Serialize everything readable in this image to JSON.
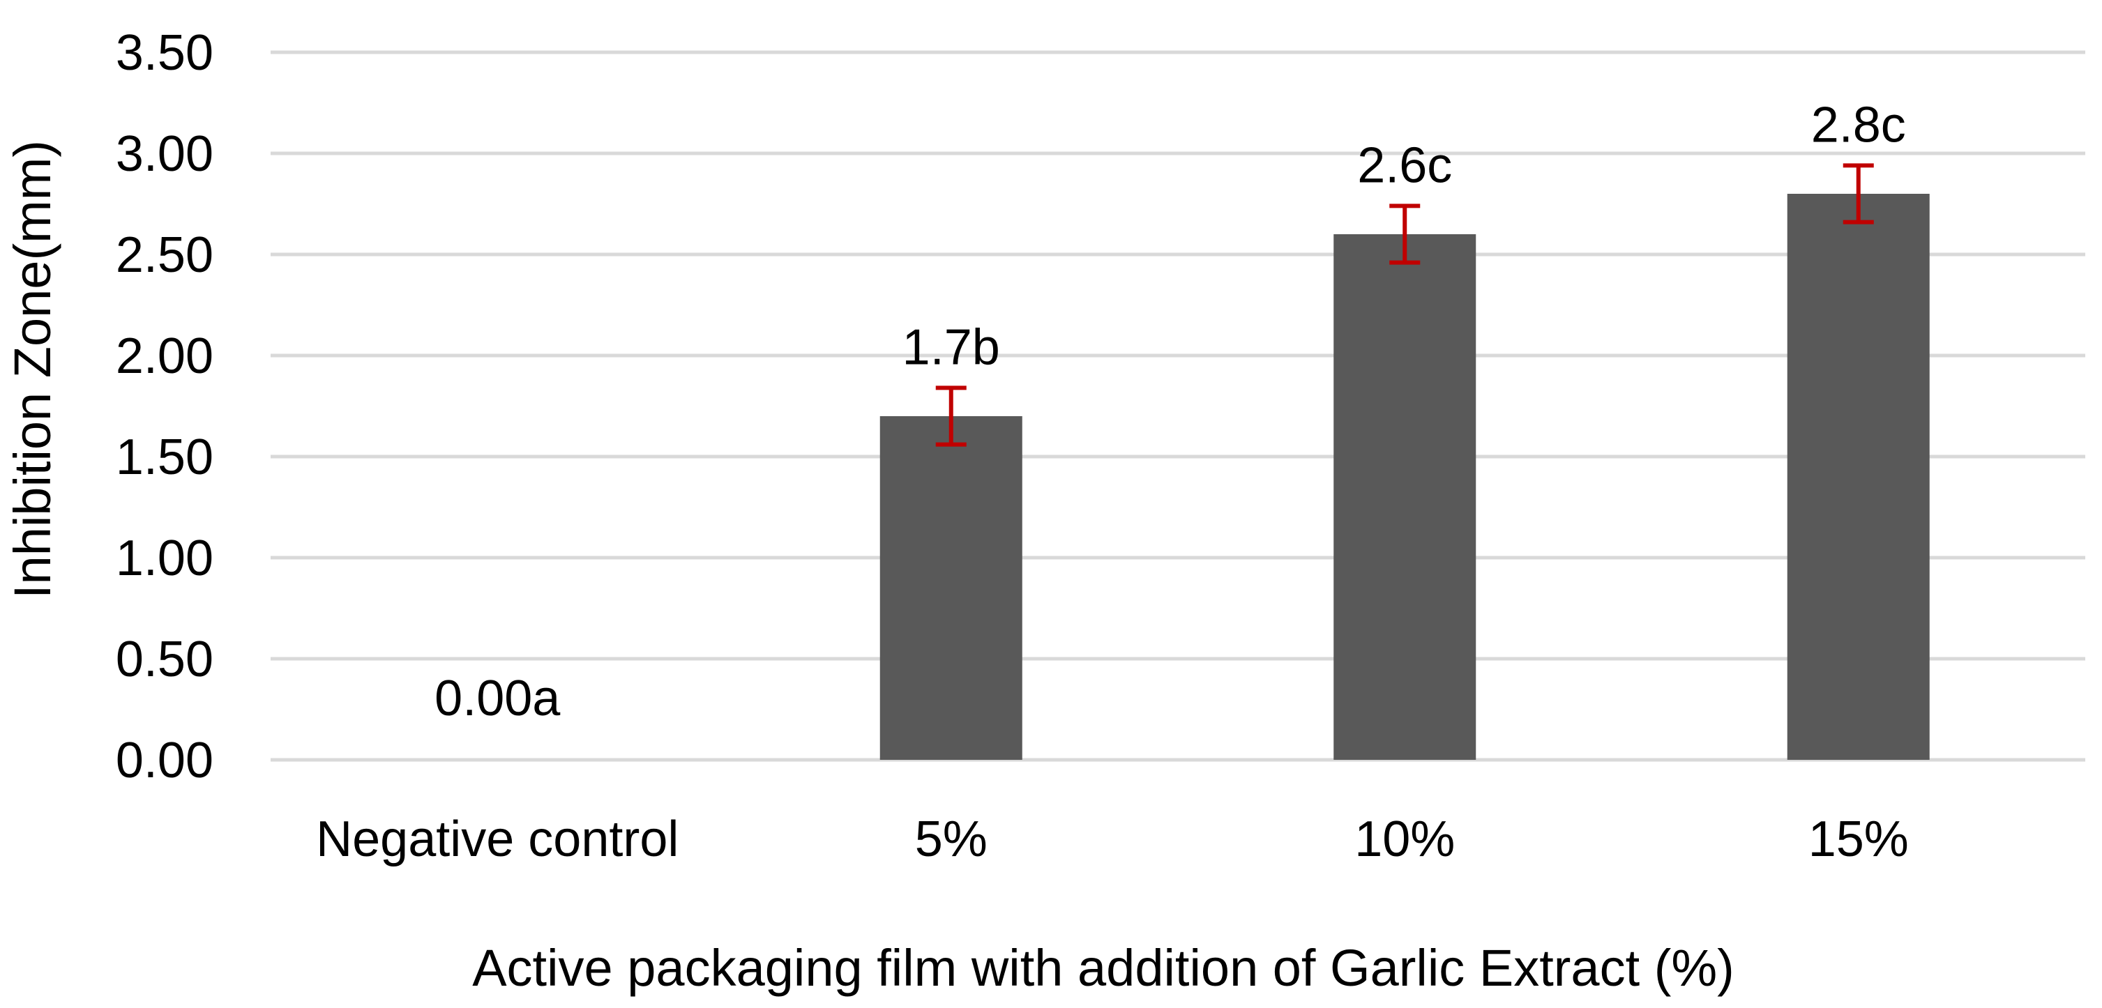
{
  "chart_data": {
    "type": "bar",
    "categories": [
      "Negative control",
      "5%",
      "10%",
      "15%"
    ],
    "values": [
      0.0,
      1.7,
      2.6,
      2.8
    ],
    "error": [
      0.0,
      0.14,
      0.14,
      0.14
    ],
    "data_labels": [
      "0.00a",
      "1.7b",
      "2.6c",
      "2.8c"
    ],
    "xlabel": "Active packaging film with addition of Garlic Extract (%)",
    "ylabel": "Inhibition Zone(mm)",
    "ylim": [
      0,
      3.5
    ],
    "yticks": [
      "0.00",
      "0.50",
      "1.00",
      "1.50",
      "2.00",
      "2.50",
      "3.00",
      "3.50"
    ],
    "grid": true,
    "legend": "none",
    "colors": {
      "bar": "#595959",
      "error_bar": "#c00000",
      "grid": "#d9d9d9"
    }
  }
}
